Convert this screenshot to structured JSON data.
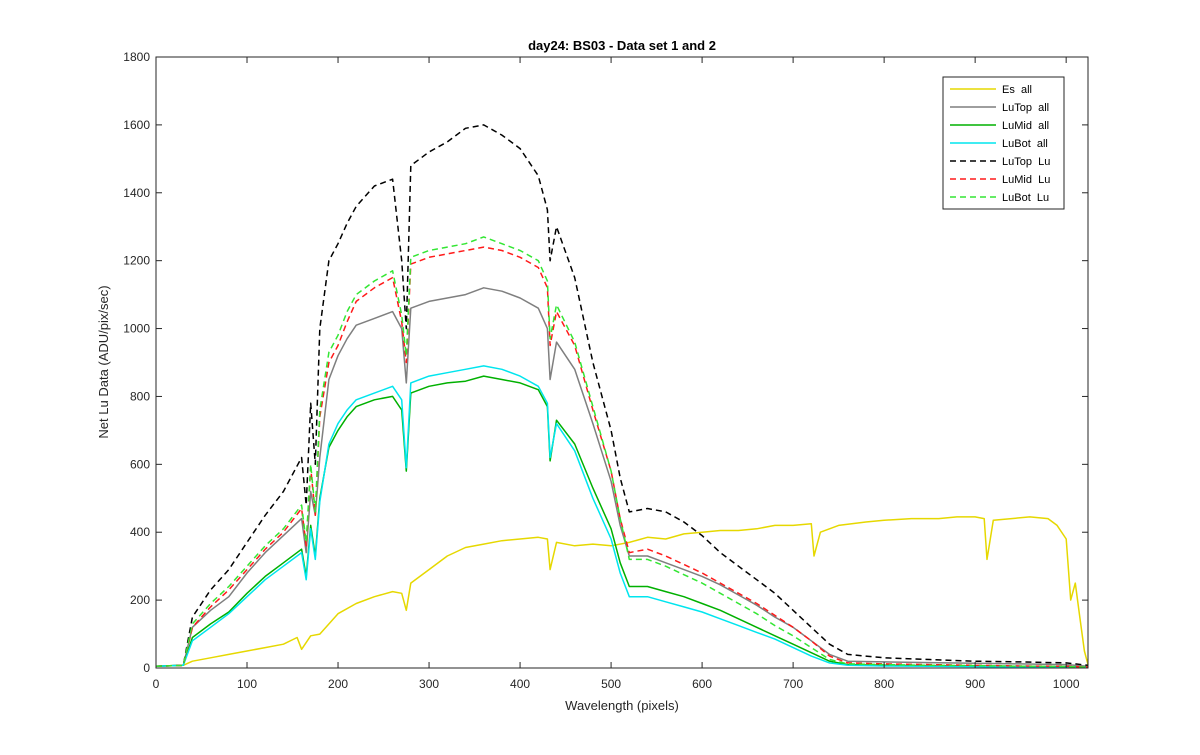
{
  "chart_data": {
    "type": "line",
    "title": "day24: BS03 - Data set 1 and 2",
    "xlabel": "Wavelength (pixels)",
    "ylabel": "Net Lu Data (ADU/pix/sec)",
    "xlim": [
      0,
      1024
    ],
    "ylim": [
      0,
      1800
    ],
    "xticks": [
      0,
      100,
      200,
      300,
      400,
      500,
      600,
      700,
      800,
      900,
      1000
    ],
    "yticks": [
      0,
      200,
      400,
      600,
      800,
      1000,
      1200,
      1400,
      1600,
      1800
    ],
    "legend_position": "top-right",
    "grid": false,
    "series": [
      {
        "name": "Es  all",
        "color": "#e6d800",
        "dash": "solid",
        "x": [
          0,
          30,
          40,
          60,
          80,
          100,
          120,
          140,
          155,
          160,
          170,
          180,
          200,
          220,
          240,
          260,
          270,
          275,
          280,
          300,
          320,
          340,
          360,
          380,
          400,
          420,
          430,
          433,
          440,
          460,
          480,
          500,
          520,
          540,
          560,
          580,
          600,
          620,
          640,
          660,
          680,
          700,
          720,
          723,
          730,
          750,
          780,
          800,
          830,
          860,
          880,
          900,
          910,
          913,
          920,
          940,
          960,
          980,
          990,
          1000,
          1005,
          1010,
          1015,
          1020,
          1024
        ],
        "y": [
          5,
          8,
          20,
          30,
          40,
          50,
          60,
          70,
          90,
          55,
          95,
          100,
          160,
          190,
          210,
          225,
          220,
          170,
          250,
          290,
          330,
          355,
          365,
          375,
          380,
          385,
          380,
          290,
          370,
          360,
          365,
          360,
          370,
          385,
          380,
          395,
          400,
          405,
          405,
          410,
          420,
          420,
          425,
          330,
          400,
          420,
          430,
          435,
          440,
          440,
          445,
          445,
          440,
          320,
          435,
          440,
          445,
          440,
          420,
          380,
          200,
          250,
          150,
          50,
          10
        ]
      },
      {
        "name": "LuTop  all",
        "color": "#7f7f7f",
        "dash": "solid",
        "x": [
          0,
          30,
          40,
          60,
          80,
          100,
          120,
          140,
          160,
          165,
          170,
          175,
          180,
          190,
          200,
          210,
          220,
          240,
          260,
          270,
          275,
          280,
          300,
          320,
          340,
          360,
          380,
          400,
          420,
          430,
          433,
          440,
          460,
          480,
          500,
          510,
          520,
          540,
          560,
          580,
          600,
          620,
          640,
          660,
          680,
          700,
          720,
          740,
          760,
          800,
          850,
          900,
          950,
          1000,
          1024
        ],
        "y": [
          5,
          8,
          120,
          170,
          210,
          280,
          340,
          390,
          440,
          340,
          520,
          450,
          620,
          850,
          920,
          970,
          1010,
          1030,
          1050,
          1000,
          840,
          1060,
          1080,
          1090,
          1100,
          1120,
          1110,
          1090,
          1060,
          1000,
          850,
          960,
          880,
          720,
          550,
          420,
          330,
          330,
          310,
          290,
          270,
          245,
          215,
          185,
          150,
          120,
          80,
          40,
          20,
          18,
          16,
          14,
          12,
          10,
          5
        ]
      },
      {
        "name": "LuMid  all",
        "color": "#00b000",
        "dash": "solid",
        "x": [
          0,
          30,
          40,
          60,
          80,
          100,
          120,
          140,
          160,
          165,
          170,
          175,
          180,
          190,
          200,
          210,
          220,
          240,
          260,
          270,
          275,
          280,
          300,
          320,
          340,
          360,
          380,
          400,
          420,
          430,
          433,
          440,
          460,
          480,
          500,
          510,
          520,
          540,
          560,
          580,
          600,
          620,
          640,
          660,
          680,
          700,
          720,
          740,
          760,
          800,
          850,
          900,
          950,
          1000,
          1024
        ],
        "y": [
          5,
          8,
          90,
          130,
          165,
          220,
          270,
          310,
          350,
          270,
          420,
          330,
          500,
          650,
          700,
          740,
          770,
          790,
          800,
          760,
          580,
          810,
          830,
          840,
          845,
          860,
          850,
          840,
          820,
          770,
          610,
          730,
          660,
          530,
          410,
          310,
          240,
          240,
          225,
          210,
          190,
          170,
          145,
          120,
          95,
          70,
          45,
          20,
          10,
          8,
          7,
          6,
          5,
          4,
          2
        ]
      },
      {
        "name": "LuBot  all",
        "color": "#00e5ee",
        "dash": "solid",
        "x": [
          0,
          30,
          40,
          60,
          80,
          100,
          120,
          140,
          160,
          165,
          170,
          175,
          180,
          190,
          200,
          210,
          220,
          240,
          260,
          270,
          275,
          280,
          300,
          320,
          340,
          360,
          380,
          400,
          420,
          430,
          433,
          440,
          460,
          480,
          500,
          510,
          520,
          540,
          560,
          580,
          600,
          620,
          640,
          660,
          680,
          700,
          720,
          740,
          760,
          800,
          850,
          900,
          950,
          1000,
          1024
        ],
        "y": [
          5,
          8,
          80,
          120,
          160,
          210,
          260,
          300,
          340,
          260,
          410,
          320,
          490,
          660,
          720,
          760,
          790,
          810,
          830,
          790,
          590,
          840,
          860,
          870,
          880,
          890,
          880,
          860,
          830,
          780,
          620,
          720,
          640,
          500,
          380,
          280,
          210,
          210,
          195,
          180,
          165,
          145,
          125,
          105,
          85,
          60,
          35,
          15,
          8,
          6,
          5,
          4,
          3,
          2,
          1
        ]
      },
      {
        "name": "LuTop  Lu",
        "color": "#000000",
        "dash": "dashed",
        "x": [
          0,
          30,
          40,
          60,
          80,
          100,
          120,
          140,
          160,
          165,
          170,
          175,
          180,
          190,
          200,
          210,
          220,
          240,
          260,
          270,
          275,
          280,
          300,
          320,
          340,
          360,
          380,
          400,
          420,
          430,
          433,
          440,
          460,
          480,
          500,
          510,
          520,
          540,
          560,
          580,
          600,
          620,
          640,
          660,
          680,
          700,
          720,
          740,
          760,
          800,
          850,
          900,
          950,
          1000,
          1024
        ],
        "y": [
          5,
          8,
          150,
          230,
          290,
          370,
          450,
          520,
          620,
          480,
          780,
          600,
          1000,
          1200,
          1250,
          1310,
          1360,
          1420,
          1440,
          1200,
          1000,
          1480,
          1520,
          1550,
          1590,
          1600,
          1570,
          1530,
          1450,
          1350,
          1200,
          1300,
          1150,
          900,
          700,
          560,
          460,
          470,
          460,
          430,
          390,
          340,
          300,
          260,
          220,
          170,
          120,
          70,
          40,
          30,
          25,
          20,
          18,
          15,
          8
        ]
      },
      {
        "name": "LuMid  Lu",
        "color": "#ff1a1a",
        "dash": "dashed",
        "x": [
          0,
          30,
          40,
          60,
          80,
          100,
          120,
          140,
          160,
          165,
          170,
          175,
          180,
          190,
          200,
          210,
          220,
          240,
          260,
          270,
          275,
          280,
          300,
          320,
          340,
          360,
          380,
          400,
          420,
          430,
          433,
          440,
          460,
          480,
          500,
          510,
          520,
          540,
          560,
          580,
          600,
          620,
          640,
          660,
          680,
          700,
          720,
          740,
          760,
          800,
          850,
          900,
          950,
          1000,
          1024
        ],
        "y": [
          5,
          8,
          120,
          180,
          230,
          290,
          350,
          400,
          470,
          360,
          590,
          450,
          740,
          900,
          950,
          1020,
          1080,
          1120,
          1150,
          1020,
          900,
          1190,
          1210,
          1220,
          1230,
          1240,
          1230,
          1210,
          1180,
          1120,
          950,
          1050,
          950,
          760,
          580,
          440,
          340,
          350,
          330,
          305,
          280,
          250,
          220,
          190,
          155,
          120,
          80,
          35,
          15,
          12,
          10,
          8,
          6,
          5,
          3
        ]
      },
      {
        "name": "LuBot  Lu",
        "color": "#33e633",
        "dash": "dashed",
        "x": [
          0,
          30,
          40,
          60,
          80,
          100,
          120,
          140,
          160,
          165,
          170,
          175,
          180,
          190,
          200,
          210,
          220,
          240,
          260,
          270,
          275,
          280,
          300,
          320,
          340,
          360,
          380,
          400,
          420,
          430,
          433,
          440,
          460,
          480,
          500,
          510,
          520,
          540,
          560,
          580,
          600,
          620,
          640,
          660,
          680,
          700,
          720,
          740,
          760,
          800,
          850,
          900,
          950,
          1000,
          1024
        ],
        "y": [
          5,
          8,
          130,
          190,
          240,
          300,
          360,
          410,
          480,
          370,
          600,
          460,
          760,
          930,
          980,
          1050,
          1100,
          1140,
          1170,
          1040,
          920,
          1210,
          1230,
          1240,
          1250,
          1270,
          1250,
          1230,
          1200,
          1140,
          970,
          1070,
          960,
          770,
          580,
          440,
          320,
          320,
          300,
          275,
          250,
          220,
          190,
          160,
          125,
          95,
          60,
          25,
          12,
          10,
          8,
          7,
          5,
          4,
          2
        ]
      }
    ]
  }
}
